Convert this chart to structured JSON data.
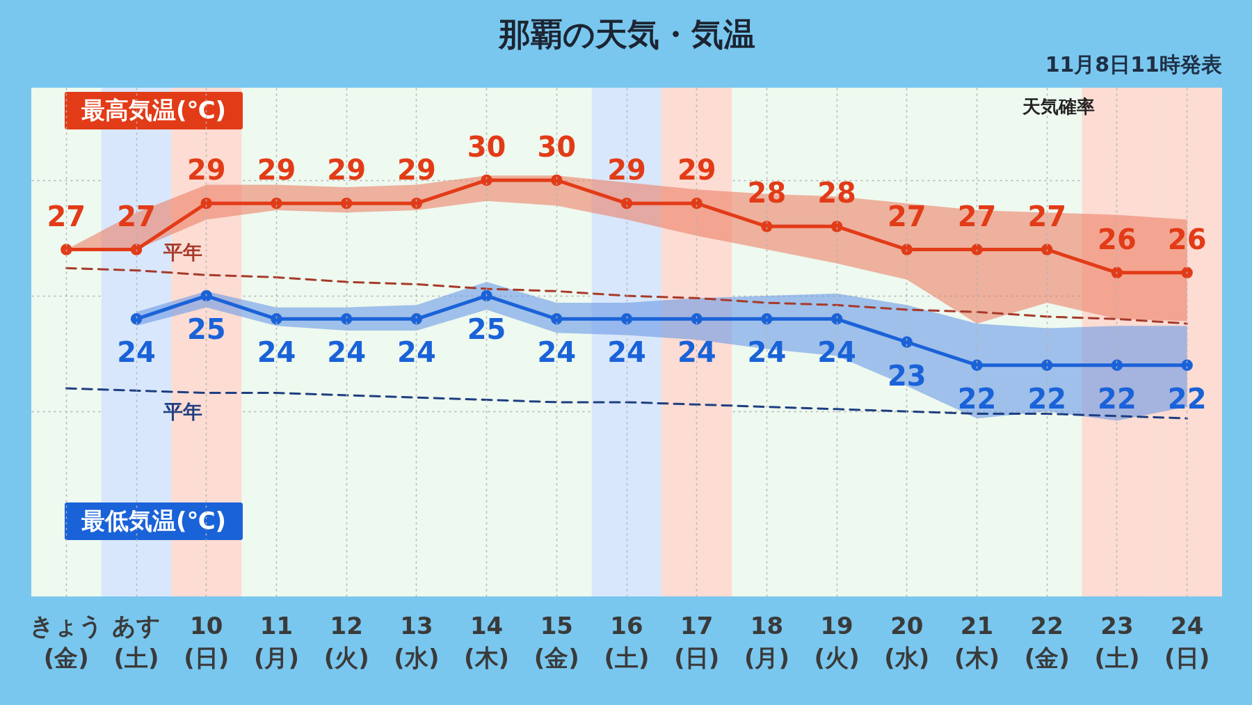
{
  "chart_data": {
    "type": "line",
    "title": "那覇の天気・気温",
    "annotations": [
      "11月8日11時発表",
      "天気確率"
    ],
    "categories": [
      "きょう\n(金)",
      "あす\n(土)",
      "10\n(日)",
      "11\n(月)",
      "12\n(火)",
      "13\n(水)",
      "14\n(木)",
      "15\n(金)",
      "16\n(土)",
      "17\n(日)",
      "18\n(月)",
      "19\n(火)",
      "20\n(水)",
      "21\n(木)",
      "22\n(金)",
      "23\n(土)",
      "24\n(日)"
    ],
    "series": [
      {
        "name": "最高気温(℃)",
        "color": "#e23b17",
        "values": [
          27,
          27,
          29,
          29,
          29,
          29,
          30,
          30,
          29,
          29,
          28,
          28,
          27,
          27,
          27,
          26,
          26
        ],
        "upper": [
          27,
          28.6,
          29.8,
          29.8,
          29.7,
          29.8,
          30.2,
          30.2,
          29.9,
          29.6,
          29.4,
          29.3,
          29.0,
          28.7,
          28.6,
          28.5,
          28.3
        ],
        "lower": [
          27,
          27,
          28.3,
          28.7,
          28.6,
          28.7,
          29.1,
          28.9,
          28.3,
          27.6,
          27.0,
          26.4,
          25.7,
          23.8,
          24.7,
          24.0,
          23.9
        ],
        "value_labels": [
          "27",
          "27",
          "29",
          "29",
          "29",
          "29",
          "30",
          "30",
          "29",
          "29",
          "28",
          "28",
          "27",
          "27",
          "27",
          "26",
          "26"
        ]
      },
      {
        "name": "最低気温(℃)",
        "color": "#1a62d8",
        "values": [
          null,
          24,
          25,
          24,
          24,
          24,
          25,
          24,
          24,
          24,
          24,
          24,
          23,
          22,
          22,
          22,
          22
        ],
        "upper": [
          null,
          24.3,
          25.2,
          24.5,
          24.5,
          24.6,
          25.6,
          24.7,
          24.7,
          24.9,
          25.0,
          25.1,
          24.6,
          23.8,
          23.6,
          23.7,
          23.7
        ],
        "lower": [
          null,
          23.7,
          24.5,
          23.7,
          23.5,
          23.5,
          24.4,
          23.4,
          23.3,
          23.1,
          22.7,
          22.4,
          21.1,
          19.7,
          20.0,
          19.6,
          20.2
        ],
        "value_labels": [
          null,
          "24",
          "25",
          "24",
          "24",
          "24",
          "25",
          "24",
          "24",
          "24",
          "24",
          "24",
          "23",
          "22",
          "22",
          "22",
          "22"
        ]
      },
      {
        "name": "平年",
        "color": "#a63a2b",
        "line_style": "dashed",
        "marker": "none",
        "values": [
          26.2,
          26.1,
          25.9,
          25.8,
          25.6,
          25.5,
          25.3,
          25.2,
          25.0,
          24.9,
          24.7,
          24.6,
          24.4,
          24.3,
          24.1,
          24.0,
          23.8
        ]
      },
      {
        "name": "平年",
        "color": "#1e3e80",
        "line_style": "dashed",
        "marker": "none",
        "values": [
          21.0,
          20.9,
          20.8,
          20.8,
          20.7,
          20.6,
          20.5,
          20.4,
          20.4,
          20.3,
          20.2,
          20.1,
          20.0,
          19.9,
          19.9,
          19.8,
          19.7
        ]
      }
    ],
    "ylim": [
      12,
      34
    ],
    "yticks": [
      {
        "value": 20,
        "label": null
      },
      {
        "value": 25,
        "label": null
      },
      {
        "value": 30,
        "label": null
      }
    ],
    "grid": true,
    "tick_labels": "x",
    "marker": "circle",
    "line_style": "solid",
    "bands": [
      {
        "axis": "x",
        "from": "あす\n(土)",
        "to": "あす\n(土)",
        "color": "#d8e7fb"
      },
      {
        "axis": "x",
        "from": "10\n(日)",
        "to": "10\n(日)",
        "color": "#fcdcd3"
      },
      {
        "axis": "x",
        "from": "16\n(土)",
        "to": "16\n(土)",
        "color": "#d8e7fb"
      },
      {
        "axis": "x",
        "from": "17\n(日)",
        "to": "17\n(日)",
        "color": "#fcdcd3"
      },
      {
        "axis": "x",
        "from": "23\n(土)",
        "to": "23\n(土)",
        "color": "#fcdcd3"
      },
      {
        "axis": "x",
        "from": "24\n(日)",
        "to": "24\n(日)",
        "color": "#fcdcd3"
      }
    ]
  }
}
